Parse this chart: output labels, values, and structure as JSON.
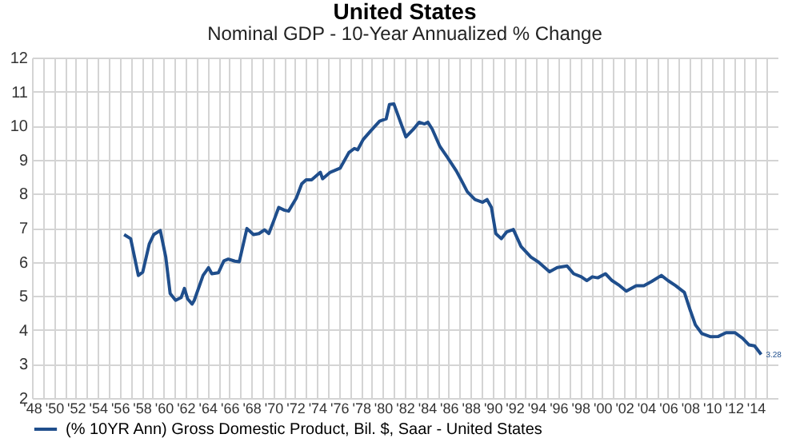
{
  "chart_data": {
    "type": "line",
    "title": "United States",
    "subtitle": "Nominal GDP - 10-Year Annualized % Change",
    "x": [
      1956.4,
      1957.0,
      1957.7,
      1958.1,
      1958.7,
      1959.1,
      1959.7,
      1960.2,
      1960.6,
      1961.1,
      1961.6,
      1961.9,
      1962.2,
      1962.6,
      1962.8,
      1963.6,
      1964.1,
      1964.4,
      1965.0,
      1965.5,
      1965.9,
      1966.5,
      1966.9,
      1967.6,
      1968.2,
      1968.7,
      1969.2,
      1969.6,
      1970.1,
      1970.5,
      1971.0,
      1971.4,
      1972.1,
      1972.6,
      1973.0,
      1973.5,
      1974.3,
      1974.5,
      1975.2,
      1976.1,
      1976.9,
      1977.4,
      1977.7,
      1978.2,
      1978.9,
      1979.7,
      1980.3,
      1980.6,
      1981.0,
      1982.1,
      1982.8,
      1983.3,
      1983.8,
      1984.1,
      1984.5,
      1985.2,
      1985.9,
      1986.7,
      1987.2,
      1987.7,
      1988.4,
      1989.1,
      1989.5,
      1989.9,
      1990.3,
      1990.8,
      1991.3,
      1991.9,
      1992.6,
      1993.5,
      1994.2,
      1995.2,
      1995.9,
      1996.8,
      1997.4,
      1998.1,
      1998.6,
      1999.1,
      1999.6,
      2000.3,
      2000.9,
      2001.6,
      2002.2,
      2003.1,
      2003.8,
      2004.5,
      2005.4,
      2006.0,
      2006.7,
      2007.5,
      2008.0,
      2008.5,
      2009.1,
      2009.9,
      2010.6,
      2011.3,
      2012.1,
      2012.8,
      2013.4,
      2013.9,
      2014.5
    ],
    "series": [
      {
        "name": "(% 10YR Ann) Gross Domestic Product, Bil. $, Saar - United States",
        "color": "#1f4e8c",
        "values": [
          6.8,
          6.68,
          5.6,
          5.7,
          6.53,
          6.8,
          6.92,
          6.14,
          5.07,
          4.87,
          4.95,
          5.22,
          4.91,
          4.76,
          4.87,
          5.6,
          5.83,
          5.65,
          5.68,
          6.03,
          6.08,
          6.02,
          6.0,
          6.98,
          6.8,
          6.83,
          6.94,
          6.83,
          7.25,
          7.6,
          7.52,
          7.49,
          7.87,
          8.29,
          8.41,
          8.41,
          8.63,
          8.44,
          8.63,
          8.75,
          9.21,
          9.33,
          9.29,
          9.59,
          9.85,
          10.13,
          10.2,
          10.62,
          10.64,
          9.67,
          9.9,
          10.1,
          10.05,
          10.1,
          9.9,
          9.39,
          9.06,
          8.67,
          8.37,
          8.06,
          7.83,
          7.75,
          7.83,
          7.6,
          6.83,
          6.68,
          6.88,
          6.95,
          6.45,
          6.14,
          5.99,
          5.71,
          5.83,
          5.88,
          5.65,
          5.56,
          5.45,
          5.56,
          5.53,
          5.65,
          5.45,
          5.3,
          5.14,
          5.3,
          5.3,
          5.42,
          5.6,
          5.45,
          5.3,
          5.1,
          4.61,
          4.15,
          3.89,
          3.8,
          3.81,
          3.92,
          3.92,
          3.76,
          3.56,
          3.53,
          3.28
        ]
      }
    ],
    "annotations": [
      {
        "text": "3.28",
        "x": 2014.5,
        "y": 3.28
      }
    ],
    "xlim": [
      1948,
      2016
    ],
    "xticks": [
      {
        "value": 1948,
        "label": "'48"
      },
      {
        "value": 1949,
        "label": null
      },
      {
        "value": 1950,
        "label": "'50"
      },
      {
        "value": 1951,
        "label": null
      },
      {
        "value": 1952,
        "label": "'52"
      },
      {
        "value": 1953,
        "label": null
      },
      {
        "value": 1954,
        "label": "'54"
      },
      {
        "value": 1955,
        "label": null
      },
      {
        "value": 1956,
        "label": "'56"
      },
      {
        "value": 1957,
        "label": null
      },
      {
        "value": 1958,
        "label": "'58"
      },
      {
        "value": 1959,
        "label": null
      },
      {
        "value": 1960,
        "label": "'60"
      },
      {
        "value": 1961,
        "label": null
      },
      {
        "value": 1962,
        "label": "'62"
      },
      {
        "value": 1963,
        "label": null
      },
      {
        "value": 1964,
        "label": "'64"
      },
      {
        "value": 1965,
        "label": null
      },
      {
        "value": 1966,
        "label": "'66"
      },
      {
        "value": 1967,
        "label": null
      },
      {
        "value": 1968,
        "label": "'68"
      },
      {
        "value": 1969,
        "label": null
      },
      {
        "value": 1970,
        "label": "'70"
      },
      {
        "value": 1971,
        "label": null
      },
      {
        "value": 1972,
        "label": "'72"
      },
      {
        "value": 1973,
        "label": null
      },
      {
        "value": 1974,
        "label": "'74"
      },
      {
        "value": 1975,
        "label": null
      },
      {
        "value": 1976,
        "label": "'76"
      },
      {
        "value": 1977,
        "label": null
      },
      {
        "value": 1978,
        "label": "'78"
      },
      {
        "value": 1979,
        "label": null
      },
      {
        "value": 1980,
        "label": "'80"
      },
      {
        "value": 1981,
        "label": null
      },
      {
        "value": 1982,
        "label": "'82"
      },
      {
        "value": 1983,
        "label": null
      },
      {
        "value": 1984,
        "label": "'84"
      },
      {
        "value": 1985,
        "label": null
      },
      {
        "value": 1986,
        "label": "'86"
      },
      {
        "value": 1987,
        "label": null
      },
      {
        "value": 1988,
        "label": "'88"
      },
      {
        "value": 1989,
        "label": null
      },
      {
        "value": 1990,
        "label": "'90"
      },
      {
        "value": 1991,
        "label": null
      },
      {
        "value": 1992,
        "label": "'92"
      },
      {
        "value": 1993,
        "label": null
      },
      {
        "value": 1994,
        "label": "'94"
      },
      {
        "value": 1995,
        "label": null
      },
      {
        "value": 1996,
        "label": "'96"
      },
      {
        "value": 1997,
        "label": null
      },
      {
        "value": 1998,
        "label": "'98"
      },
      {
        "value": 1999,
        "label": null
      },
      {
        "value": 2000,
        "label": "'00"
      },
      {
        "value": 2001,
        "label": null
      },
      {
        "value": 2002,
        "label": "'02"
      },
      {
        "value": 2003,
        "label": null
      },
      {
        "value": 2004,
        "label": "'04"
      },
      {
        "value": 2005,
        "label": null
      },
      {
        "value": 2006,
        "label": "'06"
      },
      {
        "value": 2007,
        "label": null
      },
      {
        "value": 2008,
        "label": "'08"
      },
      {
        "value": 2009,
        "label": null
      },
      {
        "value": 2010,
        "label": "'10"
      },
      {
        "value": 2011,
        "label": null
      },
      {
        "value": 2012,
        "label": "'12"
      },
      {
        "value": 2013,
        "label": null
      },
      {
        "value": 2014,
        "label": "'14"
      },
      {
        "value": 2015,
        "label": null
      }
    ],
    "ylim": [
      2,
      12
    ],
    "yticks": [
      2,
      3,
      4,
      5,
      6,
      7,
      8,
      9,
      10,
      11,
      12
    ],
    "grid": true,
    "legend": "bottom"
  }
}
